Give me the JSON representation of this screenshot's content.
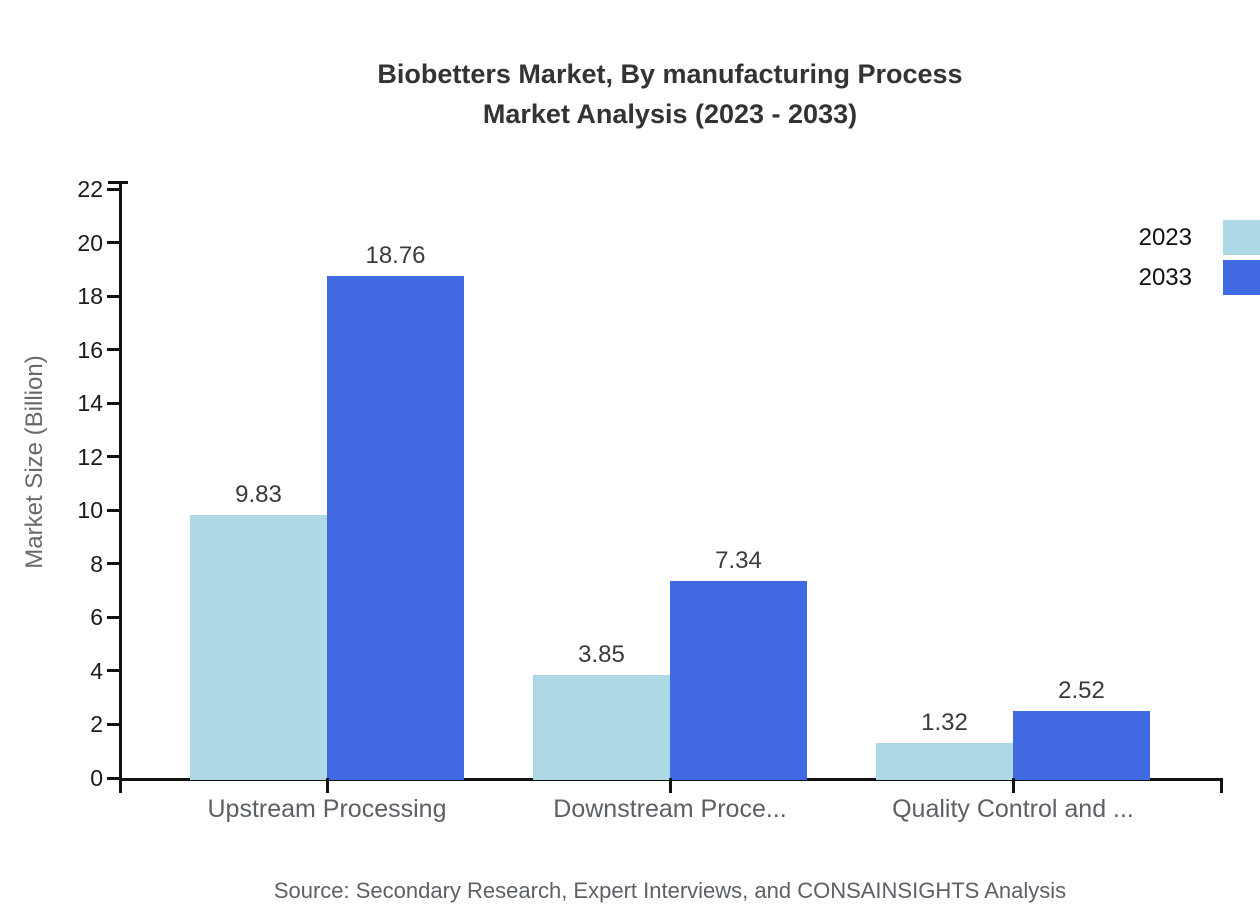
{
  "title": {
    "line1": "Biobetters Market, By manufacturing Process",
    "line2": "Market Analysis (2023 - 2033)"
  },
  "source": "Source: Secondary Research, Expert Interviews, and CONSAINSIGHTS Analysis",
  "chart_data": {
    "type": "bar",
    "title": "Biobetters Market, By manufacturing Process Market Analysis (2023 - 2033)",
    "categories": [
      "Upstream Processing",
      "Downstream Proce...",
      "Quality Control and ..."
    ],
    "series": [
      {
        "name": "2023",
        "color": "#ADD8E6",
        "values": [
          9.83,
          3.85,
          1.32
        ]
      },
      {
        "name": "2033",
        "color": "#4169E1",
        "values": [
          18.76,
          7.34,
          2.52
        ]
      }
    ],
    "ylabel": "Market Size (Billion)",
    "ylim": [
      0,
      22
    ],
    "ytick_step": 2,
    "grid": false,
    "value_labels": true,
    "legend_position": "top-right",
    "axis_color": "#111111"
  }
}
